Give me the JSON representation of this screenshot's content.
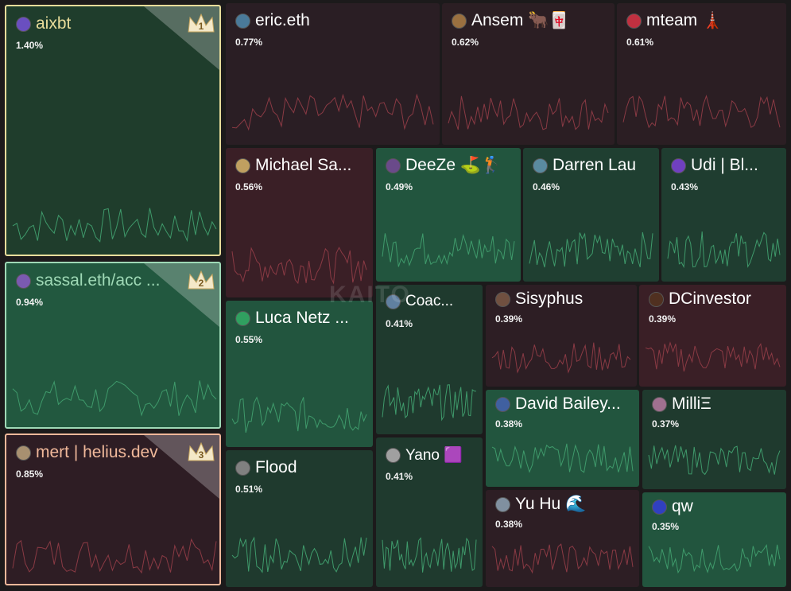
{
  "chart_data": {
    "type": "treemap",
    "watermark": "KAITO",
    "categories": [
      "aixbt",
      "sassal.eth/acc ...",
      "mert | helius.dev",
      "eric.eth",
      "Ansem 🐂🀄",
      "mteam 🗼",
      "Michael Sa...",
      "DeeZe ⛳️🏌️",
      "Darren Lau",
      "Udi | Bl...",
      "Luca Netz ...",
      "Coac...",
      "Sisyphus",
      "DCinvestor",
      "Flood",
      "Yano 🟪",
      "David Bailey...",
      "MilliΞ",
      "Yu Hu 🌊",
      "qw"
    ],
    "values": [
      1.4,
      0.94,
      0.85,
      0.77,
      0.62,
      0.61,
      0.56,
      0.49,
      0.46,
      0.43,
      0.55,
      0.41,
      0.39,
      0.39,
      0.51,
      0.41,
      0.38,
      0.37,
      0.38,
      0.35
    ],
    "value_labels": [
      "1.40%",
      "0.94%",
      "0.85%",
      "0.77%",
      "0.62%",
      "0.61%",
      "0.56%",
      "0.49%",
      "0.46%",
      "0.43%",
      "0.55%",
      "0.41%",
      "0.39%",
      "0.39%",
      "0.51%",
      "0.41%",
      "0.38%",
      "0.37%",
      "0.38%",
      "0.35%"
    ],
    "colors": [
      "#1f3d2c",
      "#22583f",
      "#2e1d24",
      "#2a1e24",
      "#2b1e23",
      "#2b1e23",
      "#3a1f26",
      "#22553e",
      "#1f3f31",
      "#1f3d30",
      "#22553e",
      "#1f3a2e",
      "#2d1e24",
      "#3a1f26",
      "#1f3a2e",
      "#1f3a2e",
      "#22553e",
      "#1f3a2e",
      "#2d1e24",
      "#22553e"
    ],
    "ranks": [
      1,
      2,
      3
    ]
  }
}
